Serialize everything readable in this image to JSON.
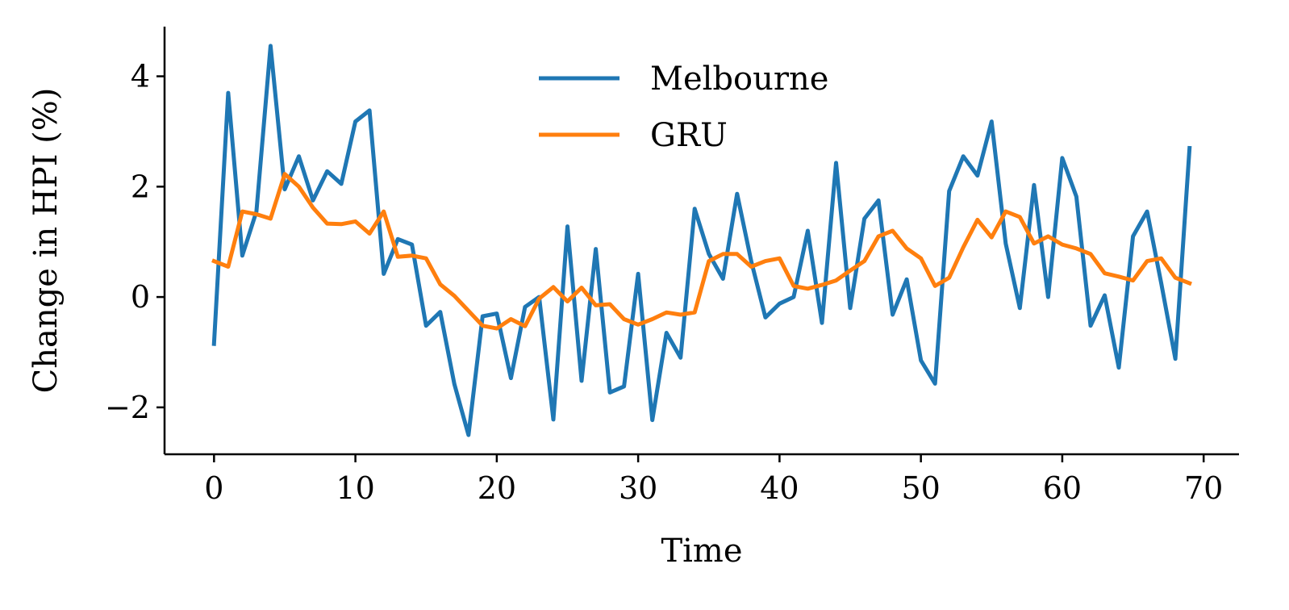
{
  "chart_data": {
    "type": "line",
    "title": "",
    "xlabel": "Time",
    "ylabel": "Change in HPI (%)",
    "xlim": [
      -3.5,
      72.5
    ],
    "ylim": [
      -2.85,
      4.9
    ],
    "xticks": [
      0,
      10,
      20,
      30,
      40,
      50,
      60,
      70
    ],
    "xtick_labels": [
      "0",
      "10",
      "20",
      "30",
      "40",
      "50",
      "60",
      "70"
    ],
    "yticks": [
      -2,
      0,
      2,
      4
    ],
    "ytick_labels": [
      "−2",
      "0",
      "2",
      "4"
    ],
    "grid": false,
    "legend_position": "upper center",
    "x": [
      0,
      1,
      2,
      3,
      4,
      5,
      6,
      7,
      8,
      9,
      10,
      11,
      12,
      13,
      14,
      15,
      16,
      17,
      18,
      19,
      20,
      21,
      22,
      23,
      24,
      25,
      26,
      27,
      28,
      29,
      30,
      31,
      32,
      33,
      34,
      35,
      36,
      37,
      38,
      39,
      40,
      41,
      42,
      43,
      44,
      45,
      46,
      47,
      48,
      49,
      50,
      51,
      52,
      53,
      54,
      55,
      56,
      57,
      58,
      59,
      60,
      61,
      62,
      63,
      64,
      65,
      66,
      67,
      68,
      69
    ],
    "series": [
      {
        "name": "Melbourne",
        "color": "#1f77b4",
        "values": [
          -0.85,
          3.7,
          0.75,
          1.55,
          4.55,
          1.95,
          2.55,
          1.75,
          2.28,
          2.05,
          3.18,
          3.38,
          0.42,
          1.05,
          0.95,
          -0.52,
          -0.27,
          -1.58,
          -2.5,
          -0.35,
          -0.3,
          -1.47,
          -0.18,
          0.0,
          -2.22,
          1.28,
          -1.52,
          0.87,
          -1.73,
          -1.62,
          0.42,
          -2.23,
          -0.65,
          -1.1,
          1.6,
          0.78,
          0.33,
          1.87,
          0.65,
          -0.37,
          -0.12,
          0.0,
          1.2,
          -0.47,
          2.43,
          -0.2,
          1.42,
          1.75,
          -0.32,
          0.32,
          -1.15,
          -1.57,
          1.92,
          2.55,
          2.2,
          3.18,
          0.97,
          -0.2,
          2.03,
          0.0,
          2.52,
          1.82,
          -0.52,
          0.03,
          -1.28,
          1.1,
          1.55,
          0.25,
          -1.12,
          2.7
        ]
      },
      {
        "name": "GRU",
        "color": "#ff7f0e",
        "values": [
          0.65,
          0.55,
          1.55,
          1.5,
          1.42,
          2.23,
          2.0,
          1.62,
          1.33,
          1.32,
          1.37,
          1.15,
          1.55,
          0.73,
          0.75,
          0.7,
          0.23,
          0.02,
          -0.25,
          -0.52,
          -0.57,
          -0.4,
          -0.53,
          -0.03,
          0.18,
          -0.08,
          0.17,
          -0.15,
          -0.13,
          -0.4,
          -0.5,
          -0.4,
          -0.28,
          -0.32,
          -0.28,
          0.65,
          0.78,
          0.78,
          0.55,
          0.65,
          0.7,
          0.2,
          0.15,
          0.22,
          0.3,
          0.48,
          0.65,
          1.1,
          1.2,
          0.88,
          0.7,
          0.2,
          0.35,
          0.9,
          1.4,
          1.08,
          1.55,
          1.45,
          0.97,
          1.1,
          0.95,
          0.88,
          0.78,
          0.43,
          0.37,
          0.3,
          0.65,
          0.7,
          0.35,
          0.25
        ]
      }
    ]
  }
}
